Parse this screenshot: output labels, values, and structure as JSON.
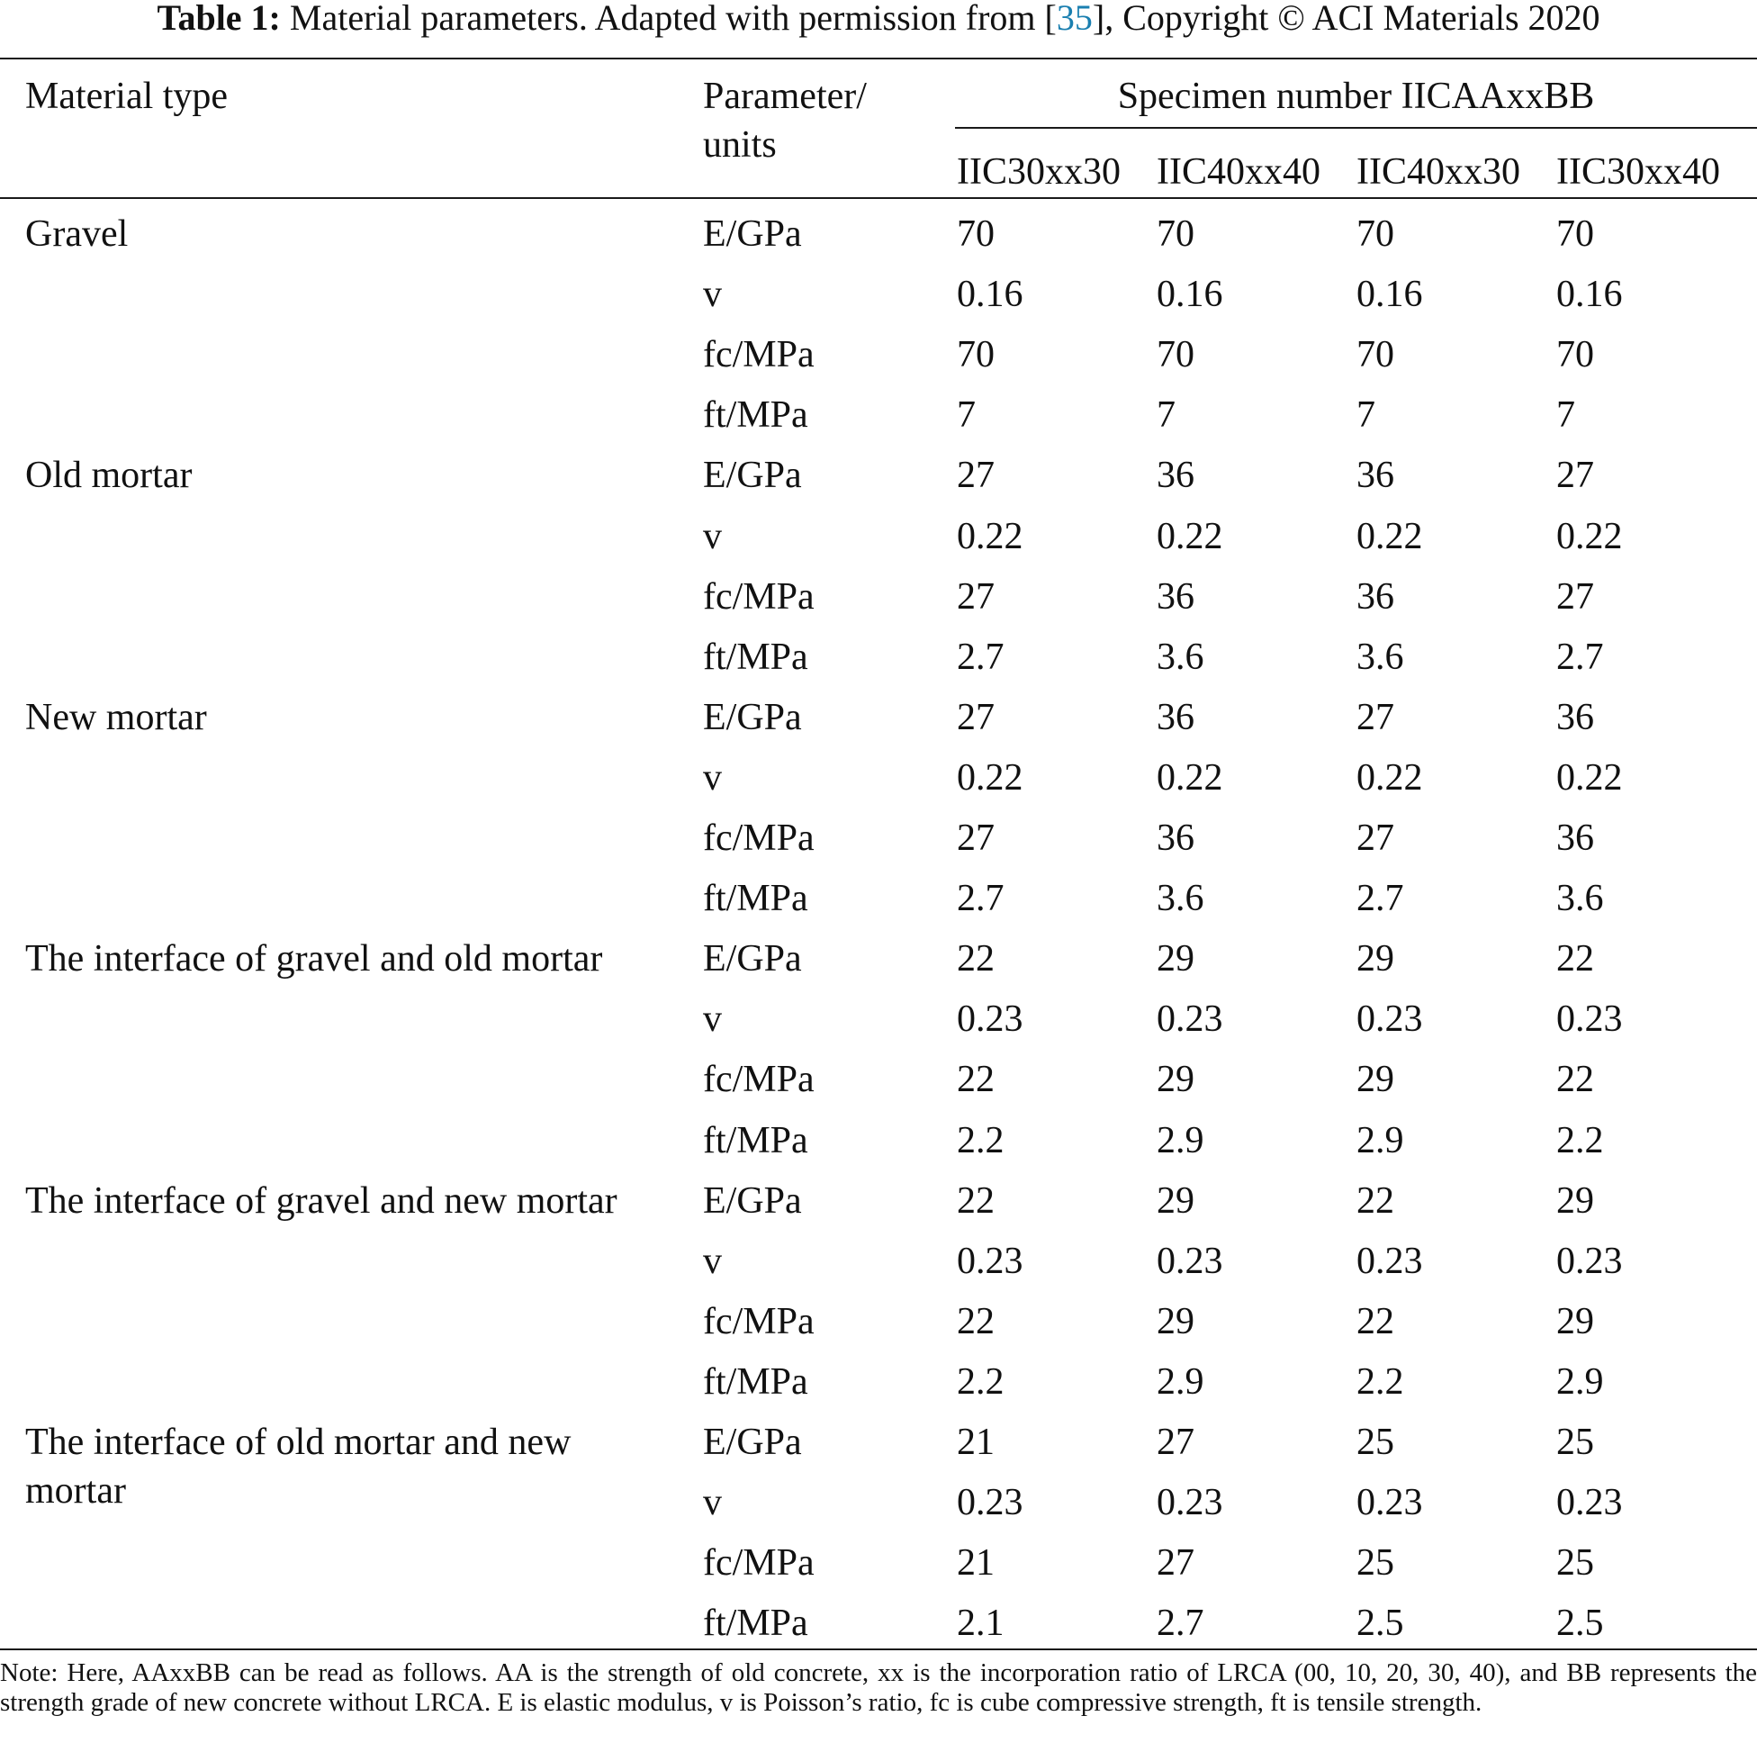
{
  "caption": {
    "label": "Table 1:",
    "text_before_ref": "Material parameters. Adapted with permission from [",
    "ref": "35",
    "text_after_ref": "], Copyright © ACI Materials 2020"
  },
  "table": {
    "header": {
      "material_type": "Material type",
      "parameter_line1": "Parameter/",
      "parameter_line2": "units",
      "specimen_group": "Specimen number IICAAxxBB",
      "specimens": [
        "IIC30xx30",
        "IIC40xx40",
        "IIC40xx30",
        "IIC30xx40"
      ]
    },
    "groups": [
      {
        "material_lines": [
          "Gravel"
        ],
        "rows": [
          {
            "param": "E/GPa",
            "values": [
              "70",
              "70",
              "70",
              "70"
            ]
          },
          {
            "param": "v",
            "values": [
              "0.16",
              "0.16",
              "0.16",
              "0.16"
            ]
          },
          {
            "param": "fc/MPa",
            "values": [
              "70",
              "70",
              "70",
              "70"
            ]
          },
          {
            "param": "ft/MPa",
            "values": [
              "7",
              "7",
              "7",
              "7"
            ]
          }
        ]
      },
      {
        "material_lines": [
          "Old mortar"
        ],
        "rows": [
          {
            "param": "E/GPa",
            "values": [
              "27",
              "36",
              "36",
              "27"
            ]
          },
          {
            "param": "v",
            "values": [
              "0.22",
              "0.22",
              "0.22",
              "0.22"
            ]
          },
          {
            "param": "fc/MPa",
            "values": [
              "27",
              "36",
              "36",
              "27"
            ]
          },
          {
            "param": "ft/MPa",
            "values": [
              "2.7",
              "3.6",
              "3.6",
              "2.7"
            ]
          }
        ]
      },
      {
        "material_lines": [
          "New mortar"
        ],
        "rows": [
          {
            "param": "E/GPa",
            "values": [
              "27",
              "36",
              "27",
              "36"
            ]
          },
          {
            "param": "v",
            "values": [
              "0.22",
              "0.22",
              "0.22",
              "0.22"
            ]
          },
          {
            "param": "fc/MPa",
            "values": [
              "27",
              "36",
              "27",
              "36"
            ]
          },
          {
            "param": "ft/MPa",
            "values": [
              "2.7",
              "3.6",
              "2.7",
              "3.6"
            ]
          }
        ]
      },
      {
        "material_lines": [
          "The interface of gravel and old mortar"
        ],
        "rows": [
          {
            "param": "E/GPa",
            "values": [
              "22",
              "29",
              "29",
              "22"
            ]
          },
          {
            "param": "v",
            "values": [
              "0.23",
              "0.23",
              "0.23",
              "0.23"
            ]
          },
          {
            "param": "fc/MPa",
            "values": [
              "22",
              "29",
              "29",
              "22"
            ]
          },
          {
            "param": "ft/MPa",
            "values": [
              "2.2",
              "2.9",
              "2.9",
              "2.2"
            ]
          }
        ]
      },
      {
        "material_lines": [
          "The interface of gravel and new mortar"
        ],
        "rows": [
          {
            "param": "E/GPa",
            "values": [
              "22",
              "29",
              "22",
              "29"
            ]
          },
          {
            "param": "v",
            "values": [
              "0.23",
              "0.23",
              "0.23",
              "0.23"
            ]
          },
          {
            "param": "fc/MPa",
            "values": [
              "22",
              "29",
              "22",
              "29"
            ]
          },
          {
            "param": "ft/MPa",
            "values": [
              "2.2",
              "2.9",
              "2.2",
              "2.9"
            ]
          }
        ]
      },
      {
        "material_lines": [
          "The interface of old mortar and new",
          "mortar"
        ],
        "rows": [
          {
            "param": "E/GPa",
            "values": [
              "21",
              "27",
              "25",
              "25"
            ]
          },
          {
            "param": "v",
            "values": [
              "0.23",
              "0.23",
              "0.23",
              "0.23"
            ]
          },
          {
            "param": "fc/MPa",
            "values": [
              "21",
              "27",
              "25",
              "25"
            ]
          },
          {
            "param": "ft/MPa",
            "values": [
              "2.1",
              "2.7",
              "2.5",
              "2.5"
            ]
          }
        ]
      }
    ]
  },
  "note": "Note: Here, AAxxBB can be read as follows. AA is the strength of old concrete, xx is the incorporation ratio of LRCA (00, 10, 20, 30, 40), and BB represents the strength grade of new concrete without LRCA. E is elastic modulus, v is Poisson’s ratio, fc is cube compressive strength, ft is tensile strength."
}
